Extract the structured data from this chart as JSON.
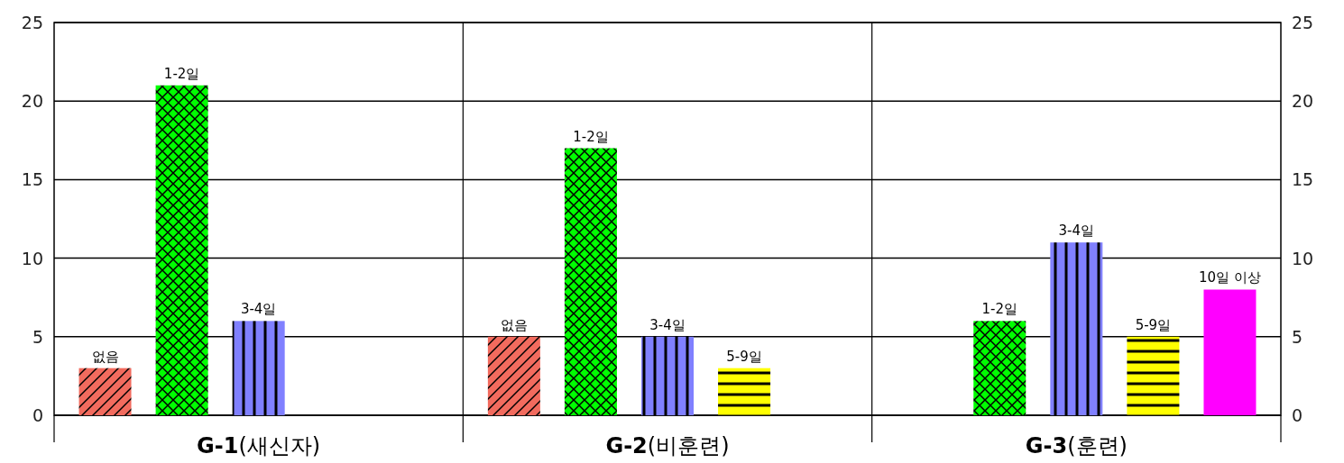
{
  "chart_data": {
    "type": "bar",
    "categories": [
      "**G-1**(새신자)",
      "**G-2**(비훈련)",
      "**G-3**(훈련)"
    ],
    "series": [
      {
        "name": "없음",
        "color": "#f26b5e",
        "values": [
          3,
          5,
          null
        ]
      },
      {
        "name": "1-2일",
        "color": "#00ff00",
        "values": [
          21,
          17,
          6
        ]
      },
      {
        "name": "3-4일",
        "color": "#8080ff",
        "values": [
          6,
          5,
          11
        ]
      },
      {
        "name": "5-9일",
        "color": "#ffff00",
        "values": [
          null,
          3,
          5
        ]
      },
      {
        "name": "10일 이상",
        "color": "#ff00ff",
        "values": [
          null,
          null,
          8
        ]
      }
    ],
    "ylim": [
      0,
      25
    ],
    "yticks": [
      0,
      5,
      10,
      15,
      20,
      25
    ],
    "y2lim": [
      0,
      25
    ],
    "y2ticks": [
      0,
      5,
      10,
      15,
      20,
      25
    ],
    "grid": "y"
  }
}
